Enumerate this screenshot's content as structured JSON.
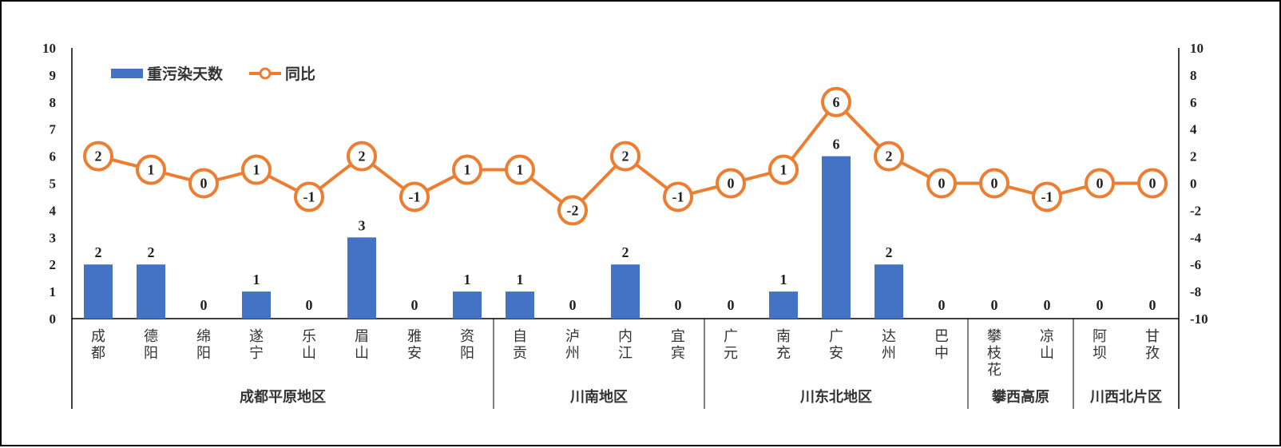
{
  "chart_data": {
    "type": "bar",
    "categories": [
      "成都",
      "德阳",
      "绵阳",
      "遂宁",
      "乐山",
      "眉山",
      "雅安",
      "资阳",
      "自贡",
      "泸州",
      "内江",
      "宜宾",
      "广元",
      "南充",
      "广安",
      "达州",
      "巴中",
      "攀枝花",
      "凉山",
      "阿坝",
      "甘孜"
    ],
    "groups": [
      {
        "name": "成都平原地区",
        "count": 8
      },
      {
        "name": "川南地区",
        "count": 4
      },
      {
        "name": "川东北地区",
        "count": 5
      },
      {
        "name": "攀西高原",
        "count": 2
      },
      {
        "name": "川西北片区",
        "count": 2
      }
    ],
    "series": [
      {
        "name": "重污染天数",
        "type": "bar",
        "axis": "left",
        "color": "#4472C4",
        "values": [
          2,
          2,
          0,
          1,
          0,
          3,
          0,
          1,
          1,
          0,
          2,
          0,
          0,
          1,
          6,
          2,
          0,
          0,
          0,
          0,
          0
        ]
      },
      {
        "name": "同比",
        "type": "line",
        "axis": "right",
        "color": "#ED7D31",
        "values": [
          2,
          1,
          0,
          1,
          -1,
          2,
          -1,
          1,
          1,
          -2,
          2,
          -1,
          0,
          1,
          6,
          2,
          0,
          0,
          -1,
          0,
          0
        ]
      }
    ],
    "ylim_left": [
      0,
      10
    ],
    "ylim_right": [
      -10,
      10
    ],
    "yticks_left": [
      0,
      1,
      2,
      3,
      4,
      5,
      6,
      7,
      8,
      9,
      10
    ],
    "yticks_right": [
      -10,
      -8,
      -6,
      -4,
      -2,
      0,
      2,
      4,
      6,
      8,
      10
    ],
    "legend_position": "top-left",
    "grid": false
  }
}
